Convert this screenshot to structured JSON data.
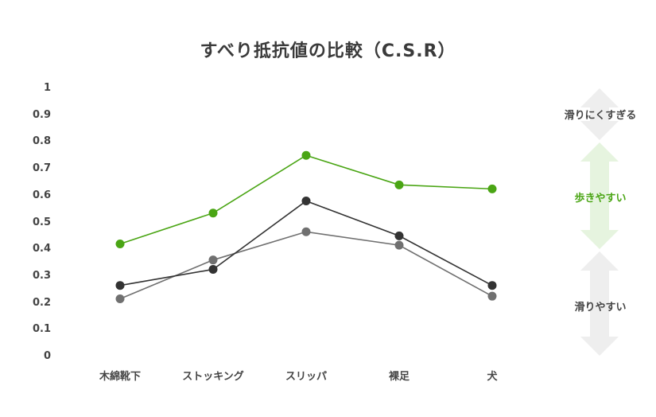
{
  "chart_data": {
    "type": "line",
    "title": "すべり抵抗値の比較（C.S.R）",
    "xlabel": "",
    "ylabel": "",
    "ylim": [
      0,
      1
    ],
    "grid": false,
    "legend": null,
    "yticks": [
      "1",
      "0.9",
      "0.8",
      "0.7",
      "0.6",
      "0.5",
      "0.4",
      "0.3",
      "0.2",
      "0.1",
      "0"
    ],
    "categories": [
      "木綿靴下",
      "ストッキング",
      "スリッパ",
      "裸足",
      "犬"
    ],
    "series": [
      {
        "name": "series-green",
        "color": "#4aa514",
        "values": [
          0.42,
          0.535,
          0.75,
          0.64,
          0.625
        ]
      },
      {
        "name": "series-dark",
        "color": "#333333",
        "values": [
          0.265,
          0.325,
          0.58,
          0.45,
          0.265
        ]
      },
      {
        "name": "series-gray",
        "color": "#707070",
        "values": [
          0.215,
          0.36,
          0.465,
          0.415,
          0.225
        ]
      }
    ],
    "annotations": [
      {
        "label": "滑りにくすぎる",
        "range": [
          0.81,
          1.0
        ],
        "color": "#eeeeee",
        "text_color": "#444444"
      },
      {
        "label": "歩きやすい",
        "range": [
          0.4,
          0.8
        ],
        "color": "#e6f4df",
        "text_color": "#4aa514"
      },
      {
        "label": "滑りやすい",
        "range": [
          0.0,
          0.39
        ],
        "color": "#eeeeee",
        "text_color": "#444444"
      }
    ]
  }
}
